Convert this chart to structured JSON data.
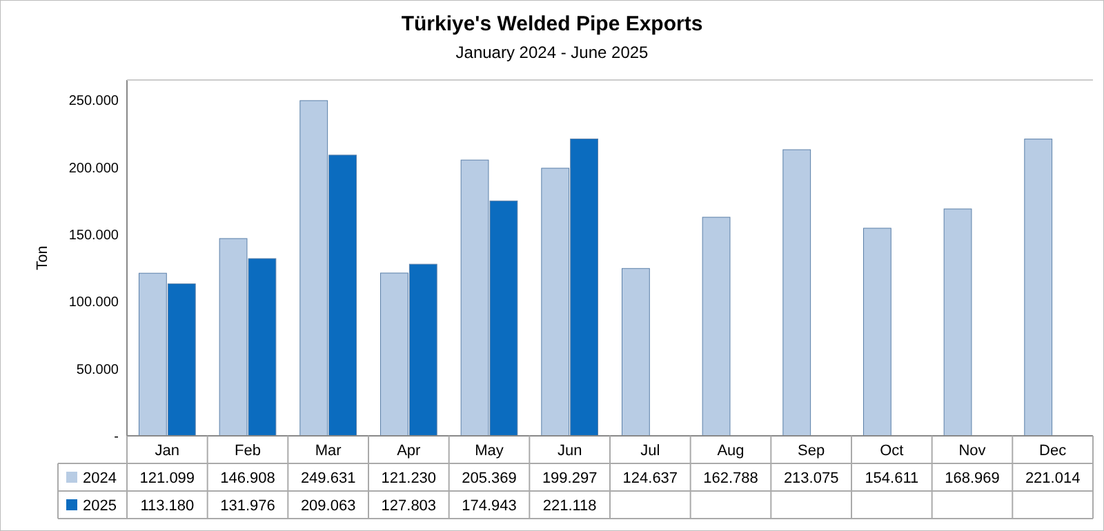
{
  "chart_data": {
    "type": "bar",
    "title": "Türkiye's Welded Pipe Exports",
    "subtitle": "January 2024 - June 2025",
    "ylabel": "Ton",
    "categories": [
      "Jan",
      "Feb",
      "Mar",
      "Apr",
      "May",
      "Jun",
      "Jul",
      "Aug",
      "Sep",
      "Oct",
      "Nov",
      "Dec"
    ],
    "series": [
      {
        "name": "2024",
        "color": "#b8cce4",
        "values": [
          121099,
          146908,
          249631,
          121230,
          205369,
          199297,
          124637,
          162788,
          213075,
          154611,
          168969,
          221014
        ],
        "value_labels": [
          "121.099",
          "146.908",
          "249.631",
          "121.230",
          "205.369",
          "199.297",
          "124.637",
          "162.788",
          "213.075",
          "154.611",
          "168.969",
          "221.014"
        ]
      },
      {
        "name": "2025",
        "color": "#0b6cbf",
        "values": [
          113180,
          131976,
          209063,
          127803,
          174943,
          221118,
          null,
          null,
          null,
          null,
          null,
          null
        ],
        "value_labels": [
          "113.180",
          "131.976",
          "209.063",
          "127.803",
          "174.943",
          "221.118",
          null,
          null,
          null,
          null,
          null,
          null
        ]
      }
    ],
    "ylim": [
      0,
      265000
    ],
    "yticks": [
      {
        "value": 0,
        "label": "-"
      },
      {
        "value": 50000,
        "label": "50.000"
      },
      {
        "value": 100000,
        "label": "100.000"
      },
      {
        "value": 150000,
        "label": "150.000"
      },
      {
        "value": 200000,
        "label": "200.000"
      },
      {
        "value": 250000,
        "label": "250.000"
      }
    ],
    "grid": false,
    "legend": "bottom left"
  }
}
